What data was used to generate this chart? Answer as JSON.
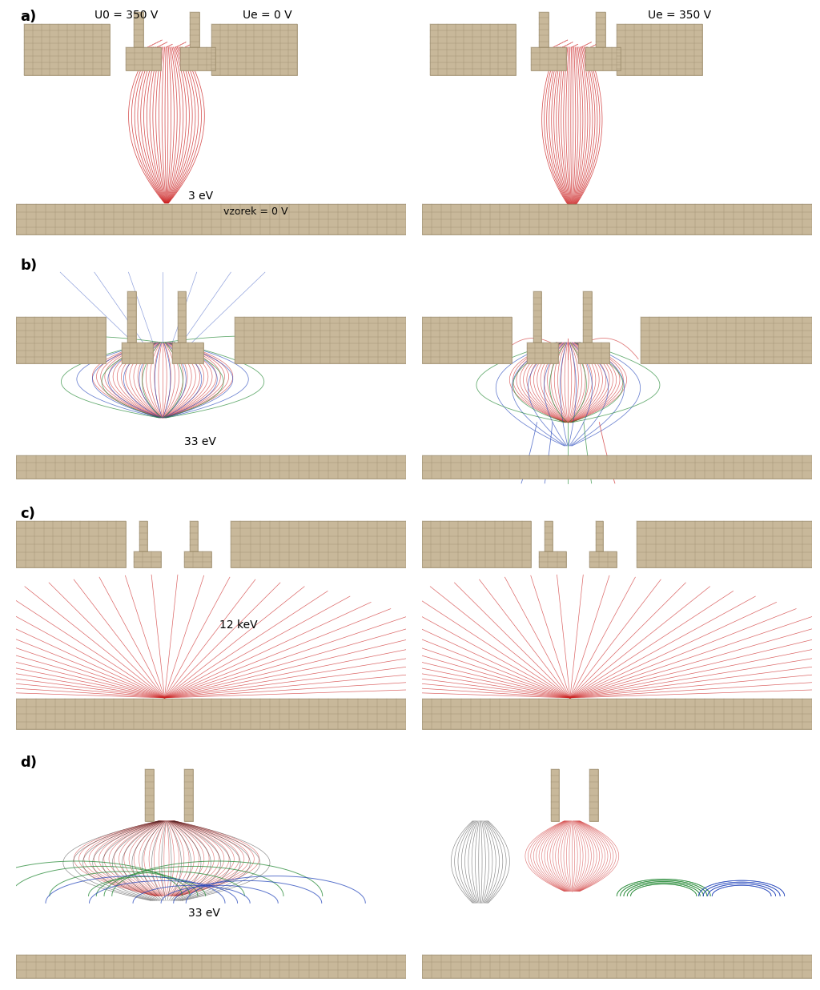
{
  "bg_color": "#ffffff",
  "grid_color": "#c8b89a",
  "grid_line_color": "#a09070",
  "red": "#cc2222",
  "blue": "#2244bb",
  "green": "#228833",
  "dark": "#222222",
  "panel_labels": [
    "a)",
    "b)",
    "c)",
    "d)"
  ],
  "label_fontsize": 13,
  "text_fontsize": 10
}
